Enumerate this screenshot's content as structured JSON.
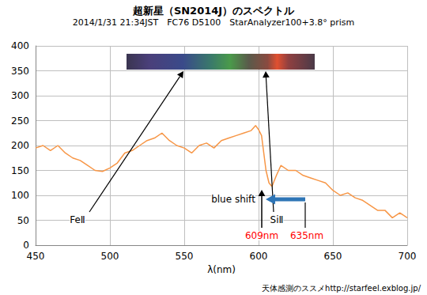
{
  "chart_data": {
    "type": "line",
    "title": "超新星（SN2014J）のスペクトル",
    "subtitle": "2014/1/31 21:34JST　FC76 D5100　StarAnalyzer100+3.8° prism",
    "x_label": "λ(nm)",
    "x": [
      450,
      455,
      460,
      465,
      470,
      475,
      480,
      485,
      490,
      495,
      500,
      505,
      510,
      515,
      520,
      525,
      530,
      535,
      540,
      545,
      550,
      555,
      560,
      565,
      570,
      575,
      580,
      585,
      590,
      595,
      598,
      600,
      602,
      605,
      607,
      609,
      612,
      615,
      620,
      625,
      630,
      635,
      640,
      645,
      650,
      655,
      660,
      665,
      670,
      675,
      680,
      685,
      690,
      695,
      700
    ],
    "values": [
      195,
      200,
      190,
      200,
      185,
      175,
      170,
      160,
      150,
      148,
      155,
      165,
      185,
      190,
      200,
      210,
      215,
      225,
      210,
      200,
      195,
      185,
      200,
      205,
      195,
      210,
      215,
      220,
      225,
      230,
      240,
      232,
      220,
      150,
      125,
      118,
      140,
      160,
      150,
      150,
      140,
      135,
      130,
      125,
      110,
      100,
      105,
      95,
      90,
      80,
      70,
      70,
      55,
      65,
      55
    ],
    "color": "#f79646",
    "xlim": [
      450,
      700
    ],
    "xticks": [
      450,
      500,
      550,
      600,
      650,
      700
    ],
    "ylim": [
      0,
      400
    ],
    "yticks": [
      0,
      50,
      100,
      150,
      200,
      250,
      300,
      350,
      400
    ],
    "grid": true,
    "annotations": [
      {
        "text": "FeⅡ",
        "color": "#000000"
      },
      {
        "text": "SiⅡ",
        "color": "#000000"
      },
      {
        "text": "blue shift",
        "color": "#000000"
      },
      {
        "text": "609nm",
        "color": "#ff0000"
      },
      {
        "text": "635nm",
        "color": "#ff0000"
      }
    ],
    "source": "天体感測のススメhttp://starfeel.exblog.jp/"
  }
}
